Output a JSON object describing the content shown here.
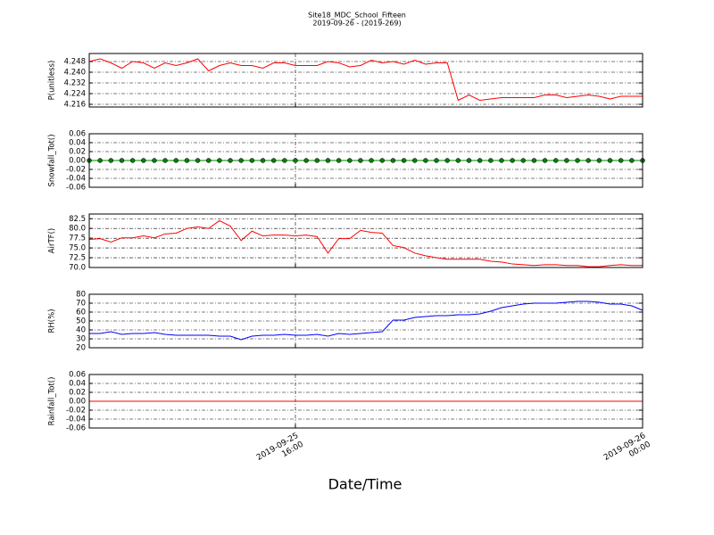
{
  "chart_data": [
    {
      "type": "line",
      "title": "Site18_MDC_School_Fifteen",
      "subtitle": "2019-09-26 - (2019-269)",
      "x": [
        "2019-09-25 11:15",
        "2019-09-25 11:30",
        "2019-09-25 11:45",
        "2019-09-25 12:00",
        "2019-09-25 12:15",
        "2019-09-25 12:30",
        "2019-09-25 12:45",
        "2019-09-25 13:00",
        "2019-09-25 13:15",
        "2019-09-25 13:30",
        "2019-09-25 13:45",
        "2019-09-25 14:00",
        "2019-09-25 14:15",
        "2019-09-25 14:30",
        "2019-09-25 14:45",
        "2019-09-25 15:00",
        "2019-09-25 15:15",
        "2019-09-25 15:30",
        "2019-09-25 15:45",
        "2019-09-25 16:00",
        "2019-09-25 16:15",
        "2019-09-25 16:30",
        "2019-09-25 16:45",
        "2019-09-25 17:00",
        "2019-09-25 17:15",
        "2019-09-25 17:30",
        "2019-09-25 17:45",
        "2019-09-25 18:00",
        "2019-09-25 18:15",
        "2019-09-25 18:30",
        "2019-09-25 18:45",
        "2019-09-25 19:00",
        "2019-09-25 19:15",
        "2019-09-25 19:30",
        "2019-09-25 19:45",
        "2019-09-25 20:00",
        "2019-09-25 20:15",
        "2019-09-25 20:30",
        "2019-09-25 20:45",
        "2019-09-25 21:00",
        "2019-09-25 21:15",
        "2019-09-25 21:30",
        "2019-09-25 21:45",
        "2019-09-25 22:00",
        "2019-09-25 22:15",
        "2019-09-25 22:30",
        "2019-09-25 22:45",
        "2019-09-25 23:00",
        "2019-09-25 23:15",
        "2019-09-25 23:30",
        "2019-09-25 23:45",
        "2019-09-26 00:00"
      ],
      "xlim": [
        "2019-09-25 11:15",
        "2019-09-26 00:00"
      ],
      "ylabel": "P(unitless)",
      "ylim": [
        4.214,
        4.254
      ],
      "yticks": [
        4.216,
        4.224,
        4.232,
        {
          "value": 4.24,
          "label": "4.240"
        },
        4.248
      ],
      "grid": true,
      "series": [
        {
          "name": "P",
          "color": "#ff0000",
          "values": [
            4.248,
            4.25,
            4.247,
            4.243,
            4.248,
            4.247,
            4.243,
            4.247,
            4.245,
            4.247,
            4.25,
            4.241,
            4.245,
            4.247,
            4.245,
            4.245,
            4.243,
            4.247,
            4.247,
            4.245,
            4.245,
            4.245,
            4.248,
            4.247,
            4.244,
            4.245,
            4.249,
            4.247,
            4.248,
            4.246,
            4.249,
            4.246,
            4.247,
            4.247,
            4.219,
            4.223,
            4.219,
            4.22,
            4.221,
            4.221,
            4.221,
            4.221,
            4.223,
            4.223,
            4.221,
            4.222,
            4.223,
            4.222,
            4.22,
            4.222,
            4.222,
            4.222
          ]
        }
      ]
    },
    {
      "type": "line",
      "ylabel": "Snowfall_Tot()",
      "ylim": [
        -0.06,
        0.06
      ],
      "yticks": [
        -0.06,
        -0.04,
        -0.02,
        {
          "value": 0,
          "label": "0.00"
        },
        0.02,
        0.04,
        0.06
      ],
      "grid": true,
      "markers": true,
      "series": [
        {
          "name": "Snowfall_Tot",
          "color": "#008000",
          "values": [
            0,
            0,
            0,
            0,
            0,
            0,
            0,
            0,
            0,
            0,
            0,
            0,
            0,
            0,
            0,
            0,
            0,
            0,
            0,
            0,
            0,
            0,
            0,
            0,
            0,
            0,
            0,
            0,
            0,
            0,
            0,
            0,
            0,
            0,
            0,
            0,
            0,
            0,
            0,
            0,
            0,
            0,
            0,
            0,
            0,
            0,
            0,
            0,
            0,
            0,
            0,
            0
          ]
        }
      ]
    },
    {
      "type": "line",
      "ylabel": "AirTF()",
      "ylim": [
        70,
        83.7
      ],
      "yticks": [
        {
          "value": 70,
          "label": "70.0"
        },
        72.5,
        {
          "value": 75,
          "label": "75.0"
        },
        77.5,
        {
          "value": 80,
          "label": "80.0"
        },
        82.5
      ],
      "grid": true,
      "series": [
        {
          "name": "AirTF",
          "color": "#ff0000",
          "values": [
            77.2,
            77.4,
            76.5,
            77.6,
            77.6,
            78.1,
            77.6,
            78.6,
            78.8,
            80.0,
            80.4,
            80.0,
            82.0,
            80.6,
            76.9,
            79.3,
            78.1,
            78.3,
            78.3,
            78.1,
            78.3,
            77.9,
            73.7,
            77.4,
            77.4,
            79.5,
            79.0,
            78.8,
            75.6,
            75.1,
            73.7,
            73.0,
            72.5,
            72.1,
            72.1,
            72.1,
            72.1,
            71.6,
            71.4,
            70.9,
            70.7,
            70.5,
            70.7,
            70.7,
            70.5,
            70.5,
            70.2,
            70.2,
            70.5,
            70.7,
            70.5,
            70.5
          ]
        }
      ]
    },
    {
      "type": "line",
      "ylabel": "RH(%)",
      "ylim": [
        20,
        80
      ],
      "yticks": [
        20,
        30,
        40,
        50,
        60,
        70,
        80
      ],
      "grid": true,
      "series": [
        {
          "name": "RH",
          "color": "#0000ff",
          "values": [
            36,
            36,
            38,
            35,
            36,
            36,
            37,
            35,
            34,
            34,
            34,
            34,
            33,
            33,
            29,
            33,
            34,
            34,
            35,
            34,
            34,
            35,
            33,
            36,
            35,
            36,
            37,
            38,
            51,
            51,
            54,
            55,
            56,
            56,
            57,
            57,
            58,
            61,
            65,
            67,
            69,
            70,
            70,
            70,
            71,
            72,
            72,
            71,
            69,
            69,
            67,
            62
          ]
        }
      ]
    },
    {
      "type": "line",
      "ylabel": "Rainfall_Tot()",
      "ylim": [
        -0.06,
        0.06
      ],
      "yticks": [
        -0.06,
        -0.04,
        -0.02,
        {
          "value": 0,
          "label": "0.00"
        },
        0.02,
        0.04,
        0.06
      ],
      "grid": true,
      "xlabel": "Date/Time",
      "xticks": [
        {
          "value": "2019-09-25 16:00",
          "label": "2019-09-25\n16:00"
        },
        {
          "value": "2019-09-26 00:00",
          "label": "2019-09-26\n00:00"
        }
      ],
      "series": [
        {
          "name": "Rainfall_Tot",
          "color": "#ff0000",
          "values": [
            0,
            0,
            0,
            0,
            0,
            0,
            0,
            0,
            0,
            0,
            0,
            0,
            0,
            0,
            0,
            0,
            0,
            0,
            0,
            0,
            0,
            0,
            0,
            0,
            0,
            0,
            0,
            0,
            0,
            0,
            0,
            0,
            0,
            0,
            0,
            0,
            0,
            0,
            0,
            0,
            0,
            0,
            0,
            0,
            0,
            0,
            0,
            0,
            0,
            0,
            0,
            0
          ]
        }
      ]
    }
  ]
}
